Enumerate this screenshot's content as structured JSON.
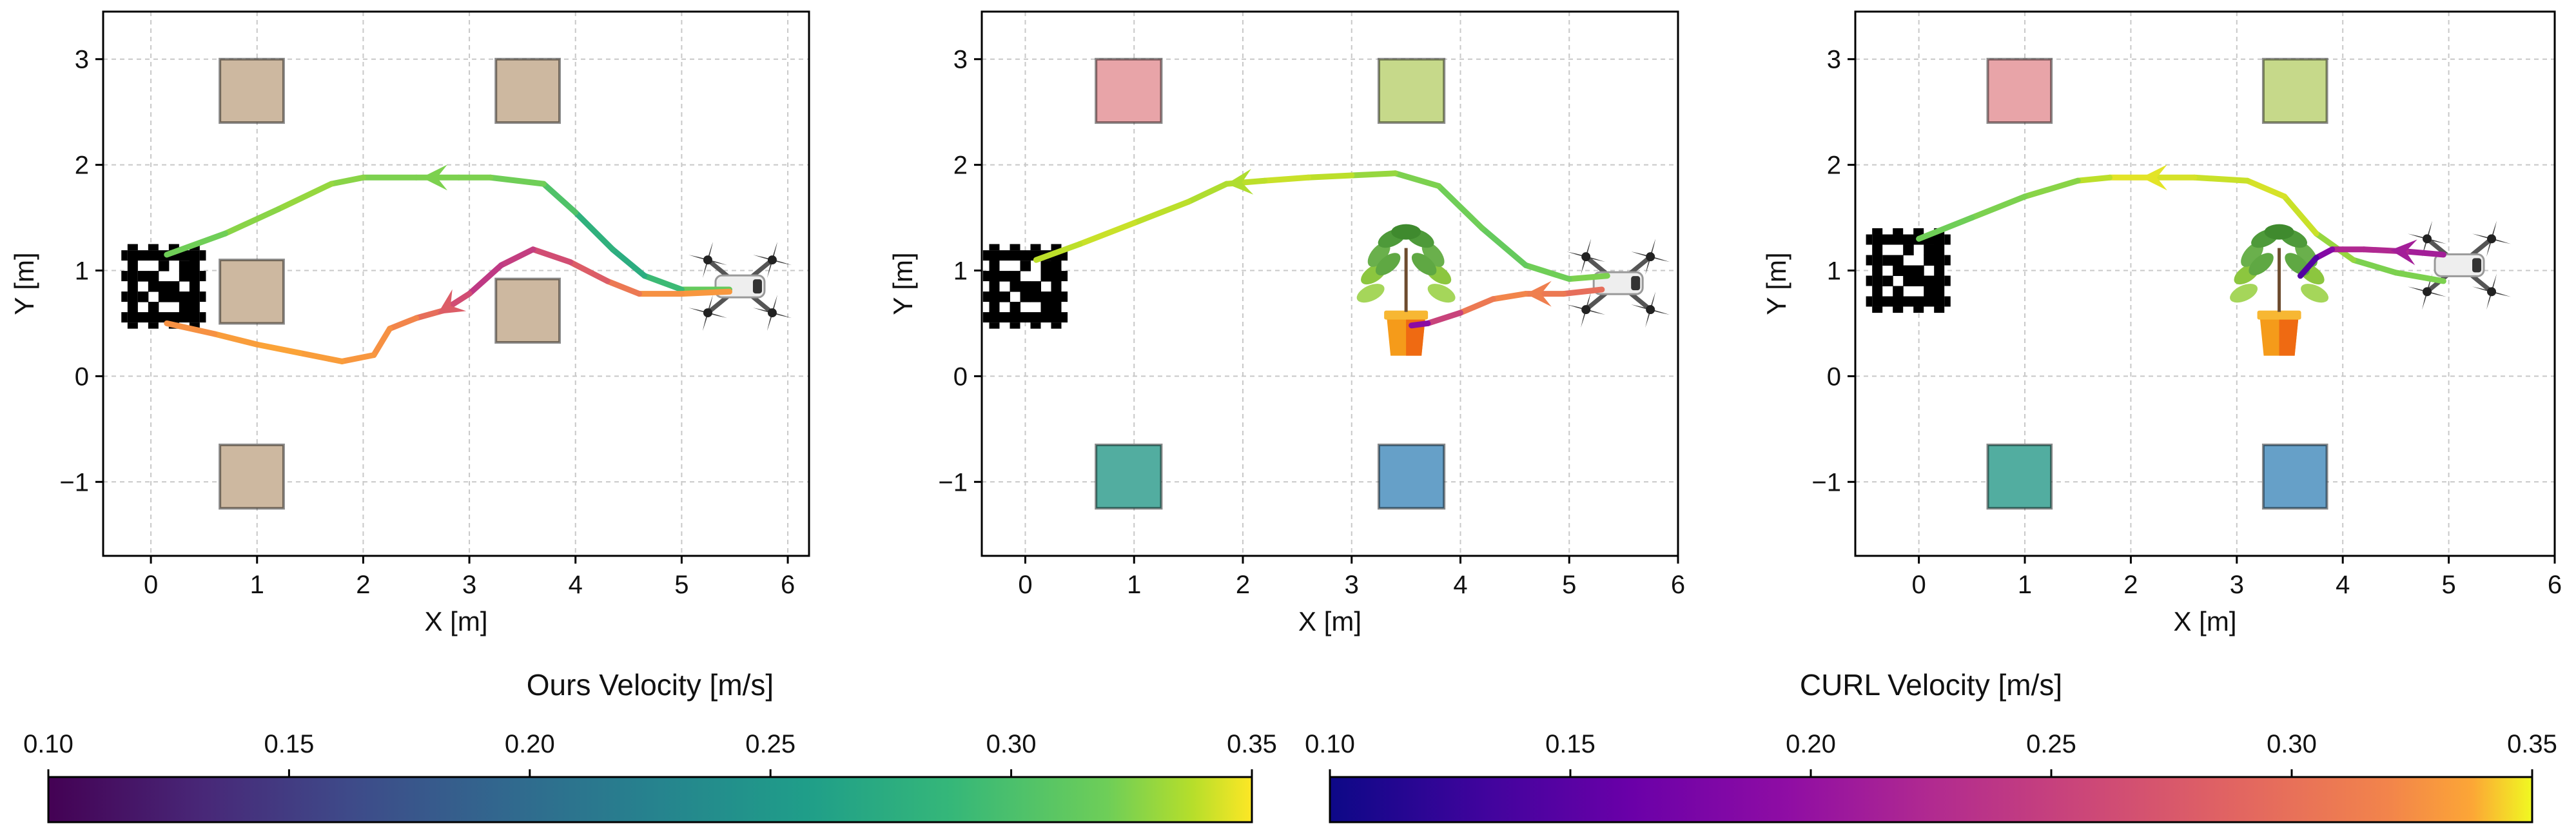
{
  "chart_data": [
    {
      "type": "line",
      "subtype": "trajectory",
      "xlabel": "X [m]",
      "ylabel": "Y [m]",
      "xlim": [
        -0.45,
        6.2
      ],
      "ylim": [
        -1.7,
        3.45
      ],
      "xticks": [
        "0",
        "1",
        "2",
        "3",
        "4",
        "5",
        "6"
      ],
      "yticks": [
        "−1",
        "0",
        "1",
        "2",
        "3"
      ],
      "grid": true,
      "colormap": "viridis",
      "obstacles": [
        {
          "x": 0.95,
          "y": 2.7,
          "color": "#cdb8a0"
        },
        {
          "x": 3.55,
          "y": 2.7,
          "color": "#cdb8a0"
        },
        {
          "x": 0.95,
          "y": 0.8,
          "color": "#cdb8a0"
        },
        {
          "x": 3.55,
          "y": 0.62,
          "color": "#cdb8a0"
        },
        {
          "x": 0.95,
          "y": -0.95,
          "color": "#cdb8a0"
        }
      ],
      "marker_pos": [
        0.12,
        0.85
      ],
      "drone_pos": [
        5.55,
        0.85
      ],
      "series": [
        {
          "points": [
            [
              5.45,
              0.82
            ],
            [
              5.0,
              0.82
            ],
            [
              4.65,
              0.95
            ],
            [
              4.35,
              1.2
            ],
            [
              4.0,
              1.55
            ],
            [
              3.7,
              1.82
            ],
            [
              3.2,
              1.88
            ],
            [
              2.9,
              1.88
            ],
            [
              2.5,
              1.88
            ],
            [
              2.0,
              1.88
            ],
            [
              1.7,
              1.82
            ],
            [
              1.2,
              1.58
            ],
            [
              0.7,
              1.35
            ],
            [
              0.15,
              1.15
            ]
          ],
          "velocity": [
            0.3,
            0.28,
            0.26,
            0.25,
            0.27,
            0.29,
            0.3,
            0.3,
            0.3,
            0.3,
            0.31,
            0.31,
            0.3,
            0.29
          ],
          "arrow_x": 2.55
        },
        {
          "points": [
            [
              5.45,
              0.8
            ],
            [
              5.0,
              0.78
            ],
            [
              4.6,
              0.78
            ],
            [
              4.3,
              0.9
            ],
            [
              3.95,
              1.08
            ],
            [
              3.6,
              1.2
            ],
            [
              3.3,
              1.05
            ],
            [
              3.0,
              0.78
            ],
            [
              2.75,
              0.62
            ],
            [
              2.5,
              0.55
            ],
            [
              2.25,
              0.45
            ],
            [
              2.1,
              0.2
            ],
            [
              1.8,
              0.14
            ],
            [
              1.4,
              0.22
            ],
            [
              1.0,
              0.3
            ],
            [
              0.6,
              0.4
            ],
            [
              0.15,
              0.5
            ]
          ],
          "velocity": [
            0.31,
            0.31,
            0.3,
            0.27,
            0.25,
            0.24,
            0.22,
            0.23,
            0.26,
            0.29,
            0.3,
            0.31,
            0.31,
            0.32,
            0.32,
            0.31,
            0.3
          ],
          "arrow_x": 2.7,
          "cmap": "plasma"
        }
      ]
    },
    {
      "type": "line",
      "subtype": "trajectory",
      "xlabel": "X [m]",
      "ylabel": "Y [m]",
      "xlim": [
        -0.4,
        6.0
      ],
      "ylim": [
        -1.7,
        3.45
      ],
      "xticks": [
        "0",
        "1",
        "2",
        "3",
        "4",
        "5",
        "6"
      ],
      "yticks": [
        "−1",
        "0",
        "1",
        "2",
        "3"
      ],
      "grid": true,
      "obstacles": [
        {
          "x": 0.95,
          "y": 2.7,
          "color": "#e8a4a8"
        },
        {
          "x": 3.55,
          "y": 2.7,
          "color": "#c6d98a"
        },
        {
          "x": 0.95,
          "y": -0.95,
          "color": "#52ada0"
        },
        {
          "x": 3.55,
          "y": -0.95,
          "color": "#66a0c8"
        }
      ],
      "plant_pos": [
        3.5,
        0.45
      ],
      "marker_pos": [
        0.0,
        0.85
      ],
      "drone_pos": [
        5.45,
        0.88
      ],
      "series": [
        {
          "points": [
            [
              5.35,
              0.95
            ],
            [
              5.0,
              0.92
            ],
            [
              4.6,
              1.05
            ],
            [
              4.2,
              1.4
            ],
            [
              3.8,
              1.8
            ],
            [
              3.4,
              1.92
            ],
            [
              3.0,
              1.9
            ],
            [
              2.6,
              1.88
            ],
            [
              2.2,
              1.85
            ],
            [
              1.85,
              1.82
            ],
            [
              1.5,
              1.65
            ],
            [
              1.0,
              1.45
            ],
            [
              0.5,
              1.25
            ],
            [
              0.1,
              1.1
            ]
          ],
          "velocity": [
            0.3,
            0.3,
            0.29,
            0.29,
            0.3,
            0.3,
            0.32,
            0.33,
            0.33,
            0.32,
            0.32,
            0.33,
            0.33,
            0.32
          ],
          "arrow_x": 1.85,
          "cmap": "viridis"
        },
        {
          "points": [
            [
              5.3,
              0.82
            ],
            [
              4.95,
              0.78
            ],
            [
              4.6,
              0.78
            ],
            [
              4.3,
              0.73
            ],
            [
              4.0,
              0.6
            ],
            [
              3.7,
              0.5
            ],
            [
              3.55,
              0.48
            ]
          ],
          "velocity": [
            0.27,
            0.28,
            0.29,
            0.3,
            0.27,
            0.2,
            0.16
          ],
          "arrow_x": 4.6,
          "cmap": "plasma"
        }
      ]
    },
    {
      "type": "line",
      "subtype": "trajectory",
      "xlabel": "X [m]",
      "ylabel": "Y [m]",
      "xlim": [
        -0.6,
        6.0
      ],
      "ylim": [
        -1.7,
        3.45
      ],
      "xticks": [
        "0",
        "1",
        "2",
        "3",
        "4",
        "5",
        "6"
      ],
      "yticks": [
        "−1",
        "0",
        "1",
        "2",
        "3"
      ],
      "grid": true,
      "obstacles": [
        {
          "x": 0.95,
          "y": 2.7,
          "color": "#e8a4a8"
        },
        {
          "x": 3.55,
          "y": 2.7,
          "color": "#c6d98a"
        },
        {
          "x": 0.95,
          "y": -0.95,
          "color": "#52ada0"
        },
        {
          "x": 3.55,
          "y": -0.95,
          "color": "#66a0c8"
        }
      ],
      "plant_pos": [
        3.4,
        0.45
      ],
      "marker_pos": [
        -0.1,
        1.0
      ],
      "drone_pos": [
        5.1,
        1.05
      ],
      "series": [
        {
          "points": [
            [
              4.95,
              0.9
            ],
            [
              4.5,
              0.98
            ],
            [
              4.1,
              1.1
            ],
            [
              3.75,
              1.35
            ],
            [
              3.45,
              1.7
            ],
            [
              3.1,
              1.85
            ],
            [
              2.6,
              1.88
            ],
            [
              2.2,
              1.88
            ],
            [
              1.8,
              1.88
            ],
            [
              1.5,
              1.85
            ],
            [
              1.0,
              1.7
            ],
            [
              0.5,
              1.5
            ],
            [
              0.0,
              1.3
            ]
          ],
          "velocity": [
            0.3,
            0.3,
            0.3,
            0.32,
            0.34,
            0.33,
            0.33,
            0.34,
            0.34,
            0.31,
            0.3,
            0.3,
            0.29
          ],
          "arrow_x": 2.1,
          "cmap": "viridis"
        },
        {
          "points": [
            [
              4.95,
              1.15
            ],
            [
              4.6,
              1.18
            ],
            [
              4.2,
              1.2
            ],
            [
              3.9,
              1.2
            ],
            [
              3.75,
              1.12
            ],
            [
              3.6,
              0.95
            ]
          ],
          "velocity": [
            0.2,
            0.2,
            0.22,
            0.2,
            0.15,
            0.13
          ],
          "arrow_x": 4.45,
          "cmap": "plasma"
        }
      ]
    }
  ],
  "colorbars": [
    {
      "title": "Ours Velocity [m/s]",
      "cmap": "viridis",
      "range": [
        0.1,
        0.35
      ],
      "ticks": [
        "0.10",
        "0.15",
        "0.20",
        "0.25",
        "0.30",
        "0.35"
      ]
    },
    {
      "title": "CURL Velocity [m/s]",
      "cmap": "plasma",
      "range": [
        0.1,
        0.35
      ],
      "ticks": [
        "0.10",
        "0.15",
        "0.20",
        "0.25",
        "0.30",
        "0.35"
      ]
    }
  ]
}
